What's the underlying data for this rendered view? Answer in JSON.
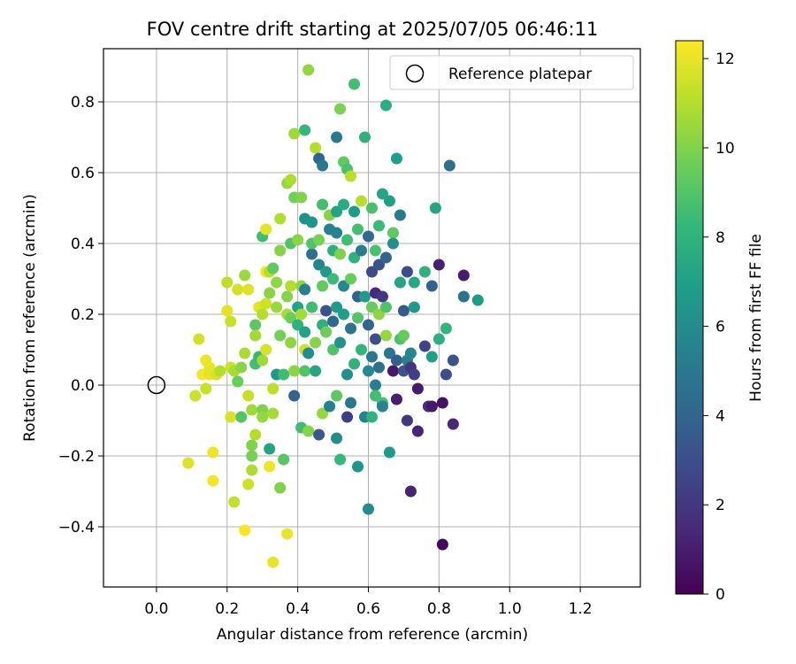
{
  "chart_data": {
    "type": "scatter",
    "title": "FOV centre drift starting at 2025/07/05 06:46:11",
    "xlabel": "Angular distance from reference (arcmin)",
    "ylabel": "Rotation from reference (arcmin)",
    "xlim": [
      -0.15,
      1.37
    ],
    "ylim": [
      -0.57,
      0.95
    ],
    "x_ticks": [
      "0.0",
      "0.2",
      "0.4",
      "0.6",
      "0.8",
      "1.0",
      "1.2"
    ],
    "y_ticks": [
      "−0.4",
      "−0.2",
      "0.0",
      "0.2",
      "0.4",
      "0.6",
      "0.8"
    ],
    "grid": true,
    "legend": {
      "placement": "upper-right",
      "entries": [
        "Reference platepar"
      ]
    },
    "reference_point": {
      "x": 0.0,
      "y": 0.0,
      "label": "Reference platepar"
    },
    "colorbar": {
      "label": "Hours from first FF file",
      "colormap": "viridis",
      "range": [
        0,
        12.4
      ],
      "ticks": [
        "0",
        "2",
        "4",
        "6",
        "8",
        "10",
        "12"
      ]
    },
    "colors": {
      "viridis": [
        "#440154",
        "#482878",
        "#3e4989",
        "#31688e",
        "#26828e",
        "#1f9e89",
        "#35b779",
        "#6ece58",
        "#b5de2b",
        "#fde725"
      ]
    },
    "points": [
      [
        0.09,
        -0.22,
        12.0
      ],
      [
        0.09,
        -0.22,
        11.8
      ],
      [
        0.11,
        -0.03,
        11.5
      ],
      [
        0.12,
        0.13,
        11.6
      ],
      [
        0.13,
        0.03,
        12.2
      ],
      [
        0.14,
        0.07,
        12.1
      ],
      [
        0.14,
        -0.01,
        11.4
      ],
      [
        0.15,
        0.05,
        12.0
      ],
      [
        0.15,
        0.03,
        11.9
      ],
      [
        0.16,
        -0.19,
        12.1
      ],
      [
        0.16,
        -0.27,
        12.2
      ],
      [
        0.17,
        0.03,
        11.7
      ],
      [
        0.18,
        0.04,
        11.0
      ],
      [
        0.2,
        0.29,
        11.2
      ],
      [
        0.2,
        0.21,
        11.9
      ],
      [
        0.21,
        0.18,
        11.4
      ],
      [
        0.21,
        -0.09,
        11.7
      ],
      [
        0.21,
        0.05,
        11.5
      ],
      [
        0.22,
        -0.33,
        11.3
      ],
      [
        0.22,
        0.04,
        10.8
      ],
      [
        0.23,
        0.27,
        11.6
      ],
      [
        0.23,
        0.01,
        9.5
      ],
      [
        0.24,
        -0.09,
        9.0
      ],
      [
        0.24,
        0.05,
        10.2
      ],
      [
        0.25,
        0.31,
        10.5
      ],
      [
        0.25,
        -0.41,
        12.3
      ],
      [
        0.25,
        0.09,
        10.8
      ],
      [
        0.26,
        0.27,
        11.8
      ],
      [
        0.26,
        -0.28,
        11.5
      ],
      [
        0.26,
        -0.03,
        11.3
      ],
      [
        0.27,
        -0.07,
        10.6
      ],
      [
        0.27,
        -0.17,
        10.0
      ],
      [
        0.27,
        -0.24,
        10.9
      ],
      [
        0.27,
        -0.2,
        9.8
      ],
      [
        0.28,
        0.17,
        9.2
      ],
      [
        0.28,
        0.06,
        8.6
      ],
      [
        0.28,
        -0.14,
        11.0
      ],
      [
        0.28,
        0.14,
        10.7
      ],
      [
        0.29,
        0.08,
        8.2
      ],
      [
        0.29,
        0.22,
        11.9
      ],
      [
        0.3,
        0.2,
        11.0
      ],
      [
        0.3,
        0.42,
        8.5
      ],
      [
        0.3,
        -0.07,
        10.0
      ],
      [
        0.3,
        -0.09,
        10.4
      ],
      [
        0.3,
        0.07,
        10.6
      ],
      [
        0.31,
        0.44,
        11.9
      ],
      [
        0.31,
        0.32,
        12.2
      ],
      [
        0.31,
        0.1,
        11.7
      ],
      [
        0.31,
        0.23,
        11.5
      ],
      [
        0.32,
        -0.18,
        7.2
      ],
      [
        0.32,
        0.26,
        10.2
      ],
      [
        0.32,
        -0.23,
        12.1
      ],
      [
        0.32,
        0.32,
        11.0
      ],
      [
        0.33,
        -0.5,
        12.0
      ],
      [
        0.33,
        0.33,
        9.3
      ],
      [
        0.33,
        -0.08,
        10.7
      ],
      [
        0.33,
        -0.01,
        11.2
      ],
      [
        0.34,
        0.03,
        6.5
      ],
      [
        0.34,
        0.29,
        10.3
      ],
      [
        0.34,
        0.22,
        10.5
      ],
      [
        0.35,
        0.47,
        10.9
      ],
      [
        0.35,
        0.38,
        10.1
      ],
      [
        0.35,
        -0.29,
        10.0
      ],
      [
        0.35,
        0.14,
        9.7
      ],
      [
        0.36,
        -0.21,
        9.1
      ],
      [
        0.36,
        0.03,
        8.5
      ],
      [
        0.37,
        0.2,
        10.8
      ],
      [
        0.37,
        -0.42,
        12.0
      ],
      [
        0.37,
        0.57,
        10.4
      ],
      [
        0.37,
        0.25,
        10.1
      ],
      [
        0.38,
        0.19,
        9.6
      ],
      [
        0.38,
        0.12,
        10.3
      ],
      [
        0.38,
        0.58,
        10.9
      ],
      [
        0.38,
        0.4,
        9.0
      ],
      [
        0.38,
        0.28,
        11.0
      ],
      [
        0.39,
        0.04,
        10.2
      ],
      [
        0.39,
        -0.03,
        4.0
      ],
      [
        0.39,
        0.71,
        10.6
      ],
      [
        0.39,
        0.53,
        9.7
      ],
      [
        0.4,
        0.17,
        8.0
      ],
      [
        0.4,
        0.22,
        7.1
      ],
      [
        0.4,
        0.41,
        10.2
      ],
      [
        0.41,
        -0.12,
        8.5
      ],
      [
        0.41,
        0.53,
        10.0
      ],
      [
        0.41,
        0.28,
        10.3
      ],
      [
        0.41,
        0.2,
        10.7
      ],
      [
        0.42,
        0.27,
        5.4
      ],
      [
        0.42,
        0.47,
        6.2
      ],
      [
        0.42,
        0.15,
        7.1
      ],
      [
        0.42,
        0.72,
        8.2
      ],
      [
        0.42,
        0.1,
        11.5
      ],
      [
        0.42,
        0.04,
        9.0
      ],
      [
        0.43,
        0.89,
        10.3
      ],
      [
        0.43,
        0.09,
        6.0
      ],
      [
        0.43,
        -0.13,
        10.1
      ],
      [
        0.44,
        0.37,
        4.6
      ],
      [
        0.44,
        0.46,
        6.4
      ],
      [
        0.44,
        0.22,
        8.5
      ],
      [
        0.44,
        0.4,
        8.9
      ],
      [
        0.45,
        0.12,
        10.1
      ],
      [
        0.45,
        0.67,
        11.0
      ],
      [
        0.45,
        0.04,
        7.3
      ],
      [
        0.46,
        0.64,
        4.0
      ],
      [
        0.46,
        0.34,
        5.6
      ],
      [
        0.46,
        -0.14,
        3.4
      ],
      [
        0.46,
        0.41,
        9.8
      ],
      [
        0.47,
        0.62,
        5.0
      ],
      [
        0.47,
        0.28,
        9.4
      ],
      [
        0.47,
        0.17,
        7.8
      ],
      [
        0.47,
        -0.08,
        10.4
      ],
      [
        0.47,
        0.51,
        8.6
      ],
      [
        0.48,
        0.21,
        3.1
      ],
      [
        0.48,
        0.32,
        6.7
      ],
      [
        0.48,
        0.15,
        9.6
      ],
      [
        0.49,
        0.44,
        5.5
      ],
      [
        0.49,
        0.48,
        10.1
      ],
      [
        0.49,
        -0.06,
        5.4
      ],
      [
        0.5,
        0.38,
        7.8
      ],
      [
        0.5,
        0.18,
        4.2
      ],
      [
        0.5,
        0.3,
        8.4
      ],
      [
        0.5,
        0.1,
        9.0
      ],
      [
        0.51,
        0.7,
        5.1
      ],
      [
        0.51,
        -0.15,
        6.0
      ],
      [
        0.51,
        0.43,
        5.5
      ],
      [
        0.51,
        -0.03,
        9.2
      ],
      [
        0.51,
        0.22,
        6.8
      ],
      [
        0.51,
        0.49,
        7.2
      ],
      [
        0.52,
        0.78,
        9.9
      ],
      [
        0.52,
        0.37,
        10.0
      ],
      [
        0.52,
        -0.21,
        8.3
      ],
      [
        0.52,
        0.12,
        6.3
      ],
      [
        0.53,
        0.63,
        9.3
      ],
      [
        0.53,
        0.2,
        6.9
      ],
      [
        0.53,
        0.28,
        5.8
      ],
      [
        0.53,
        0.51,
        7.6
      ],
      [
        0.54,
        0.61,
        8.8
      ],
      [
        0.54,
        -0.09,
        2.2
      ],
      [
        0.54,
        0.41,
        8.5
      ],
      [
        0.54,
        0.03,
        6.1
      ],
      [
        0.55,
        0.59,
        11.1
      ],
      [
        0.55,
        0.3,
        9.5
      ],
      [
        0.55,
        0.16,
        4.7
      ],
      [
        0.55,
        -0.05,
        5.0
      ],
      [
        0.56,
        0.85,
        8.6
      ],
      [
        0.56,
        0.36,
        7.9
      ],
      [
        0.56,
        0.49,
        6.8
      ],
      [
        0.56,
        0.06,
        8.0
      ],
      [
        0.57,
        0.25,
        3.9
      ],
      [
        0.57,
        0.19,
        9.0
      ],
      [
        0.57,
        -0.23,
        6.4
      ],
      [
        0.57,
        0.44,
        8.6
      ],
      [
        0.58,
        0.52,
        11.1
      ],
      [
        0.58,
        0.38,
        5.2
      ],
      [
        0.58,
        0.1,
        8.1
      ],
      [
        0.59,
        0.7,
        7.9
      ],
      [
        0.59,
        0.25,
        6.8
      ],
      [
        0.59,
        -0.09,
        5.5
      ],
      [
        0.6,
        0.04,
        5.9
      ],
      [
        0.6,
        0.17,
        4.0
      ],
      [
        0.6,
        0.42,
        4.3
      ],
      [
        0.6,
        -0.35,
        6.0
      ],
      [
        0.61,
        0.5,
        8.8
      ],
      [
        0.61,
        0.22,
        9.5
      ],
      [
        0.61,
        0.32,
        2.8
      ],
      [
        0.61,
        0.08,
        5.0
      ],
      [
        0.61,
        -0.09,
        8.0
      ],
      [
        0.62,
        0.38,
        8.8
      ],
      [
        0.62,
        0.13,
        3.0
      ],
      [
        0.62,
        0.0,
        5.3
      ],
      [
        0.62,
        0.26,
        1.5
      ],
      [
        0.62,
        -0.03,
        8.6
      ],
      [
        0.63,
        0.45,
        8.4
      ],
      [
        0.63,
        0.2,
        10.3
      ],
      [
        0.63,
        0.34,
        3.1
      ],
      [
        0.63,
        0.05,
        4.5
      ],
      [
        0.64,
        -0.05,
        8.7
      ],
      [
        0.64,
        0.54,
        7.3
      ],
      [
        0.64,
        0.25,
        2.1
      ],
      [
        0.64,
        -0.06,
        5.6
      ],
      [
        0.65,
        0.79,
        7.7
      ],
      [
        0.65,
        0.14,
        10.4
      ],
      [
        0.65,
        0.22,
        8.9
      ],
      [
        0.65,
        0.36,
        4.0
      ],
      [
        0.66,
        0.52,
        7.0
      ],
      [
        0.66,
        0.09,
        4.7
      ],
      [
        0.66,
        -0.19,
        6.7
      ],
      [
        0.67,
        0.43,
        9.3
      ],
      [
        0.67,
        0.04,
        0.8
      ],
      [
        0.67,
        0.4,
        6.2
      ],
      [
        0.68,
        0.64,
        6.9
      ],
      [
        0.68,
        0.07,
        3.7
      ],
      [
        0.68,
        -0.04,
        1.0
      ],
      [
        0.69,
        0.48,
        5.0
      ],
      [
        0.69,
        0.29,
        7.2
      ],
      [
        0.69,
        0.13,
        8.8
      ],
      [
        0.7,
        0.14,
        9.4
      ],
      [
        0.7,
        0.04,
        3.2
      ],
      [
        0.7,
        0.21,
        3.5
      ],
      [
        0.71,
        0.32,
        2.9
      ],
      [
        0.71,
        -0.1,
        2.0
      ],
      [
        0.71,
        0.07,
        5.4
      ],
      [
        0.72,
        0.09,
        5.7
      ],
      [
        0.72,
        -0.3,
        1.2
      ],
      [
        0.72,
        0.05,
        1.9
      ],
      [
        0.73,
        0.29,
        7.4
      ],
      [
        0.73,
        0.22,
        6.6
      ],
      [
        0.73,
        0.03,
        2.3
      ],
      [
        0.74,
        -0.01,
        0.9
      ],
      [
        0.74,
        -0.13,
        1.3
      ],
      [
        0.76,
        0.32,
        7.9
      ],
      [
        0.76,
        0.11,
        2.5
      ],
      [
        0.77,
        -0.06,
        1.7
      ],
      [
        0.78,
        0.28,
        3.9
      ],
      [
        0.78,
        0.08,
        7.0
      ],
      [
        0.78,
        -0.06,
        0.8
      ],
      [
        0.79,
        0.5,
        7.2
      ],
      [
        0.8,
        0.13,
        7.8
      ],
      [
        0.8,
        0.34,
        1.1
      ],
      [
        0.81,
        -0.45,
        0.3
      ],
      [
        0.81,
        -0.05,
        0.6
      ],
      [
        0.82,
        0.16,
        8.1
      ],
      [
        0.82,
        0.03,
        2.9
      ],
      [
        0.83,
        0.62,
        4.5
      ],
      [
        0.84,
        -0.11,
        1.4
      ],
      [
        0.84,
        0.07,
        3.2
      ],
      [
        0.87,
        0.31,
        0.9
      ],
      [
        0.87,
        0.25,
        4.7
      ],
      [
        0.91,
        0.24,
        6.8
      ]
    ]
  }
}
